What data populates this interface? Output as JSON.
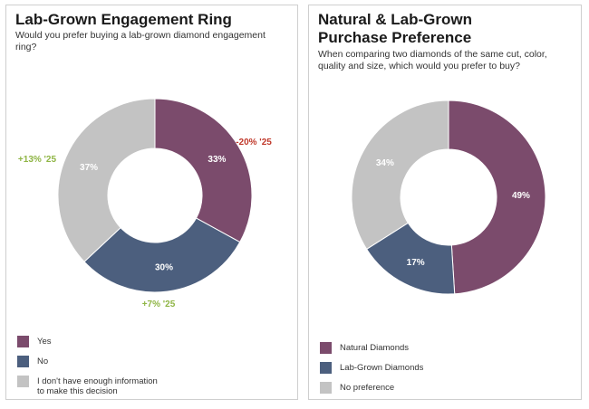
{
  "chart_data": [
    {
      "type": "pie",
      "title": "Lab-Grown Engagement Ring",
      "subtitle": "Would you prefer buying a lab-grown diamond engagement ring?",
      "categories": [
        "Yes",
        "No",
        "I don't have enough information to make this decision"
      ],
      "values": [
        33,
        30,
        37
      ],
      "value_labels": [
        "33%",
        "30%",
        "37%"
      ],
      "colors": [
        "#7b4b6c",
        "#4c5f7e",
        "#c3c3c3"
      ],
      "change_labels": [
        "-20% '25",
        "+7% '25",
        "+13% '25"
      ],
      "change_colors": [
        "#c0392b",
        "#8fb545",
        "#8fb545"
      ],
      "legend_labels": [
        "Yes",
        "No",
        "I don't have enough information",
        "to make this decision"
      ]
    },
    {
      "type": "pie",
      "title": "Natural & Lab-Grown Purchase Preference",
      "title_lines": [
        "Natural & Lab-Grown",
        "Purchase Preference"
      ],
      "subtitle": "When comparing two diamonds of the same cut, color, quality and size, which would you prefer to buy?",
      "categories": [
        "Natural Diamonds",
        "Lab-Grown Diamonds",
        "No preference"
      ],
      "values": [
        49,
        17,
        34
      ],
      "value_labels": [
        "49%",
        "17%",
        "34%"
      ],
      "colors": [
        "#7b4b6c",
        "#4c5f7e",
        "#c3c3c3"
      ],
      "legend_labels": [
        "Natural Diamonds",
        "Lab-Grown Diamonds",
        "No preference"
      ]
    }
  ]
}
